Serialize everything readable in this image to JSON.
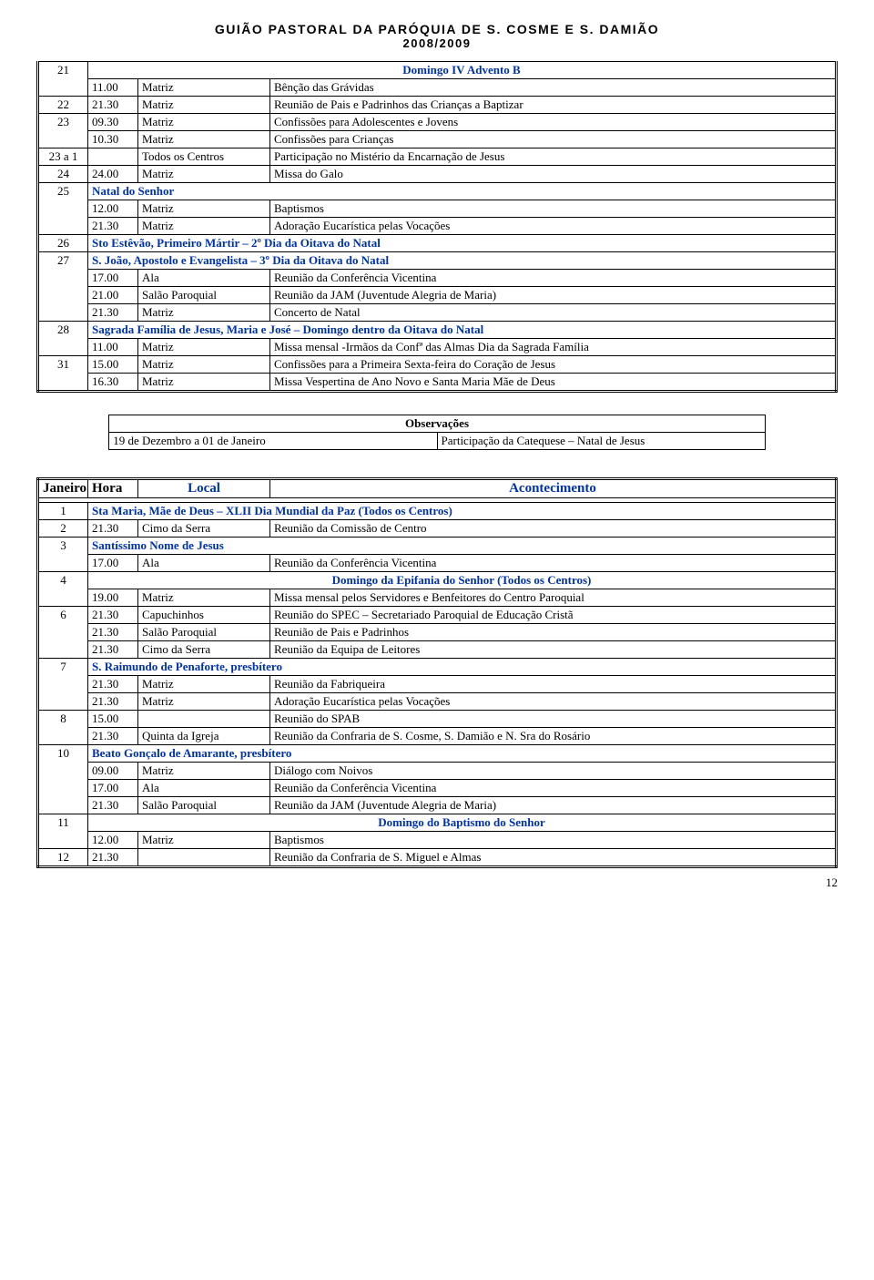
{
  "header": {
    "line1": "GUIÃO PASTORAL DA PARÓQUIA DE  S. COSME E  S. DAMIÃO",
    "line2": "2008/2009"
  },
  "table1": [
    {
      "day": "21",
      "merge": 2,
      "rows": [
        {
          "hour": "",
          "loc": "",
          "colspan": true,
          "cls": "bold blue center",
          "text": "Domingo IV Advento B"
        },
        {
          "hour": "11.00",
          "loc": "Matriz",
          "text": "Bênção das Grávidas"
        }
      ]
    },
    {
      "day": "22",
      "rows": [
        {
          "hour": "21.30",
          "loc": "Matriz",
          "text": "Reunião de Pais e Padrinhos das Crianças a Baptizar"
        }
      ]
    },
    {
      "day": "23",
      "merge": 2,
      "rows": [
        {
          "hour": "09.30",
          "loc": "Matriz",
          "text": "Confissões para Adolescentes e Jovens"
        },
        {
          "hour": "10.30",
          "loc": "Matriz",
          "text": "Confissões para Crianças"
        }
      ]
    },
    {
      "day": "23 a 1",
      "rows": [
        {
          "hour": "",
          "loc": "Todos os Centros",
          "text": "Participação no Mistério da Encarnação de Jesus"
        }
      ]
    },
    {
      "day": "24",
      "rows": [
        {
          "hour": "24.00",
          "loc": "Matriz",
          "text": "Missa do Galo"
        }
      ]
    },
    {
      "day": "25",
      "merge": 3,
      "rows": [
        {
          "hour": "",
          "loc": "",
          "colspan3": true,
          "cls": "bold blue",
          "text": "Natal do Senhor"
        },
        {
          "hour": "12.00",
          "loc": "Matriz",
          "text": "Baptismos"
        },
        {
          "hour": "21.30",
          "loc": "Matriz",
          "text": "Adoração Eucarística pelas Vocações"
        }
      ]
    },
    {
      "day": "26",
      "rows": [
        {
          "hour": "",
          "loc": "",
          "colspan3": true,
          "cls": "bold blue",
          "text": "Sto Estêvão, Primeiro Mártir – 2º Dia da Oitava do Natal"
        }
      ]
    },
    {
      "day": "27",
      "merge": 4,
      "rows": [
        {
          "hour": "",
          "loc": "",
          "colspan3": true,
          "cls": "bold blue",
          "text": "S. João, Apostolo e Evangelista – 3º Dia da Oitava do Natal"
        },
        {
          "hour": "17.00",
          "loc": "Ala",
          "text": "Reunião da Conferência Vicentina"
        },
        {
          "hour": "21.00",
          "loc": "Salão Paroquial",
          "text": "Reunião da JAM (Juventude Alegria de Maria)"
        },
        {
          "hour": "21.30",
          "loc": "Matriz",
          "text": "Concerto de Natal"
        }
      ]
    },
    {
      "day": "28",
      "merge": 2,
      "rows": [
        {
          "hour": "",
          "loc": "",
          "colspan3": true,
          "cls": "bold blue",
          "text": "Sagrada Família de Jesus, Maria e José – Domingo dentro da Oitava do Natal"
        },
        {
          "hour": "11.00",
          "loc": "Matriz",
          "text": "Missa mensal -Irmãos da Confª das Almas Dia da Sagrada Família"
        }
      ]
    },
    {
      "day": "31",
      "merge": 2,
      "rows": [
        {
          "hour": "15.00",
          "loc": "Matriz",
          "text": "Confissões para a Primeira Sexta-feira do Coração de Jesus"
        },
        {
          "hour": "16.30",
          "loc": "Matriz",
          "text": "Missa Vespertina de Ano Novo e Santa Maria Mãe de Deus"
        }
      ]
    }
  ],
  "obs": {
    "title": "Observações",
    "left": "19 de Dezembro a  01 de Janeiro",
    "right": "Participação da Catequese – Natal de Jesus"
  },
  "month": {
    "name": "Janeiro",
    "h2": "Hora",
    "h3": "Local",
    "h4": "Acontecimento"
  },
  "table2": [
    {
      "day": "1",
      "rows": [
        {
          "colspan3": true,
          "cls": "bold blue",
          "text": "Sta Maria, Mãe de Deus – XLII Dia Mundial da Paz (Todos os Centros)"
        }
      ]
    },
    {
      "day": "2",
      "rows": [
        {
          "hour": "21.30",
          "loc": "Cimo da Serra",
          "text": "Reunião da Comissão de Centro"
        }
      ]
    },
    {
      "day": "3",
      "merge": 2,
      "rows": [
        {
          "colspan3": true,
          "cls": "bold blue",
          "text": "Santíssimo Nome de Jesus"
        },
        {
          "hour": "17.00",
          "loc": "Ala",
          "text": "Reunião da Conferência Vicentina"
        }
      ]
    },
    {
      "day": "4",
      "merge": 2,
      "rows": [
        {
          "colspan": true,
          "cls": "bold blue center",
          "text": "Domingo da Epifania do Senhor (Todos os Centros)"
        },
        {
          "hour": "19.00",
          "loc": "Matriz",
          "text": "Missa mensal pelos Servidores e Benfeitores do Centro Paroquial"
        }
      ]
    },
    {
      "day": "6",
      "merge": 3,
      "rows": [
        {
          "hour": "21.30",
          "loc": "Capuchinhos",
          "text": "Reunião do SPEC – Secretariado Paroquial de Educação Cristã"
        },
        {
          "hour": "21.30",
          "loc": "Salão Paroquial",
          "text": "Reunião de Pais e Padrinhos"
        },
        {
          "hour": "21.30",
          "loc": "Cimo da Serra",
          "text": "Reunião da Equipa de Leitores"
        }
      ]
    },
    {
      "day": "7",
      "merge": 3,
      "rows": [
        {
          "colspan3": true,
          "cls": "bold blue",
          "text": "S. Raimundo de Penaforte, presbítero"
        },
        {
          "hour": "21.30",
          "loc": "Matriz",
          "text": "Reunião da Fabriqueira"
        },
        {
          "hour": "21.30",
          "loc": "Matriz",
          "text": "Adoração Eucarística pelas Vocações"
        }
      ]
    },
    {
      "day": "8",
      "merge": 2,
      "rows": [
        {
          "hour": "15.00",
          "loc": "",
          "text": "Reunião do SPAB"
        },
        {
          "hour": "21.30",
          "loc": "Quinta da Igreja",
          "text": "Reunião da Confraria de S. Cosme, S. Damião e N. Sra do Rosário"
        }
      ]
    },
    {
      "day": "10",
      "merge": 4,
      "rows": [
        {
          "colspan3": true,
          "cls": "bold blue",
          "text": "Beato Gonçalo de Amarante, presbítero"
        },
        {
          "hour": "09.00",
          "loc": "Matriz",
          "text": "Diálogo com Noivos"
        },
        {
          "hour": "17.00",
          "loc": "Ala",
          "text": "Reunião da Conferência Vicentina"
        },
        {
          "hour": "21.30",
          "loc": "Salão Paroquial",
          "text": "Reunião da JAM (Juventude Alegria de Maria)"
        }
      ]
    },
    {
      "day": "11",
      "merge": 2,
      "rows": [
        {
          "colspan": true,
          "cls": "bold blue center",
          "text": "Domingo do Baptismo do Senhor"
        },
        {
          "hour": "12.00",
          "loc": "Matriz",
          "text": "Baptismos"
        }
      ]
    },
    {
      "day": "12",
      "rows": [
        {
          "hour": "21.30",
          "loc": "",
          "text": "Reunião da Confraria de S. Miguel e Almas"
        }
      ]
    }
  ],
  "pageNumber": "12"
}
